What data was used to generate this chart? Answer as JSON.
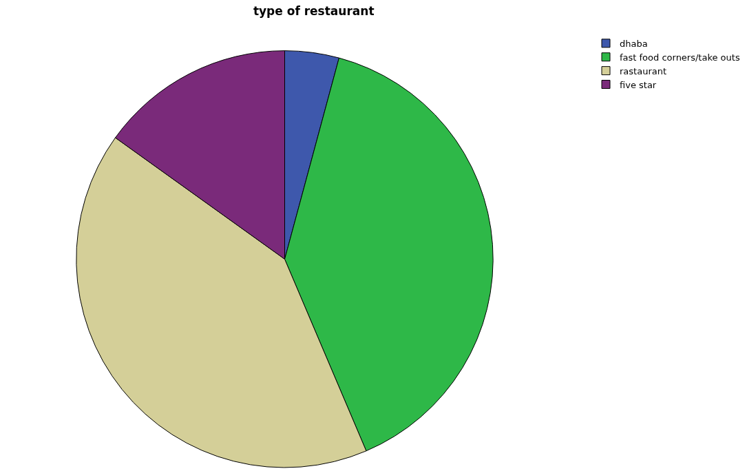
{
  "chart_data": {
    "type": "pie",
    "title": "type of restaurant",
    "categories": [
      "dhaba",
      "fast food corners/take outs",
      "rastaurant",
      "five star"
    ],
    "values": [
      4.2,
      39.4,
      41.3,
      15.1
    ],
    "colors": [
      "#3e58ac",
      "#2eb848",
      "#d4cf98",
      "#7a2a7a"
    ],
    "legend": "top right"
  }
}
